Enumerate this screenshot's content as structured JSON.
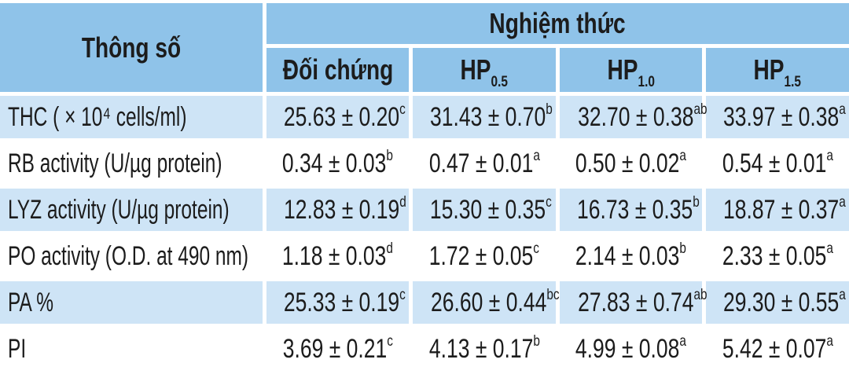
{
  "table": {
    "param_header": "Thông số",
    "group_header": "Nghiệm thức",
    "columns": [
      {
        "base": "Đối chứng",
        "sub": ""
      },
      {
        "base": "HP",
        "sub": "0.5"
      },
      {
        "base": "HP",
        "sub": "1.0"
      },
      {
        "base": "HP",
        "sub": "1.5"
      }
    ],
    "rows": [
      {
        "label": "THC ( × 10⁴ cells/ml)",
        "values": [
          {
            "v": "25.63 ± 0.20",
            "s": "c"
          },
          {
            "v": "31.43 ± 0.70",
            "s": "b"
          },
          {
            "v": "32.70 ± 0.38",
            "s": "ab"
          },
          {
            "v": "33.97 ± 0.38",
            "s": "a"
          }
        ]
      },
      {
        "label": "RB activity (U/µg protein)",
        "values": [
          {
            "v": "0.34 ± 0.03",
            "s": "b"
          },
          {
            "v": "0.47 ± 0.01",
            "s": "a"
          },
          {
            "v": "0.50 ± 0.02",
            "s": "a"
          },
          {
            "v": "0.54 ± 0.01",
            "s": "a"
          }
        ]
      },
      {
        "label": "LYZ activity (U/µg protein)",
        "values": [
          {
            "v": "12.83 ± 0.19",
            "s": "d"
          },
          {
            "v": "15.30 ± 0.35",
            "s": "c"
          },
          {
            "v": "16.73 ± 0.35",
            "s": "b"
          },
          {
            "v": "18.87 ± 0.37",
            "s": "a"
          }
        ]
      },
      {
        "label": "PO activity (O.D. at 490 nm)",
        "values": [
          {
            "v": "1.18 ± 0.03",
            "s": "d"
          },
          {
            "v": "1.72 ± 0.05",
            "s": "c"
          },
          {
            "v": "2.14 ± 0.03",
            "s": "b"
          },
          {
            "v": "2.33 ± 0.05",
            "s": "a"
          }
        ]
      },
      {
        "label": "PA %",
        "values": [
          {
            "v": "25.33 ± 0.19",
            "s": "c"
          },
          {
            "v": "26.60 ± 0.44",
            "s": "bc"
          },
          {
            "v": "27.83 ± 0.74",
            "s": "ab"
          },
          {
            "v": "29.30 ± 0.55",
            "s": "a"
          }
        ]
      },
      {
        "label": "PI",
        "values": [
          {
            "v": "3.69 ± 0.21",
            "s": "c"
          },
          {
            "v": "4.13 ± 0.17",
            "s": "b"
          },
          {
            "v": "4.99 ± 0.08",
            "s": "a"
          },
          {
            "v": "5.42 ± 0.07",
            "s": "a"
          }
        ]
      }
    ],
    "colors": {
      "header_blue": "#8fc3e9",
      "row_blue": "#cee4f6",
      "row_white": "#ffffff",
      "text": "#1c1c1c"
    }
  },
  "chart_data": {
    "type": "table",
    "title": "Nghiệm thức",
    "row_header": "Thông số",
    "columns": [
      "Đối chứng",
      "HP 0.5",
      "HP 1.0",
      "HP 1.5"
    ],
    "rows": [
      {
        "parameter": "THC ( × 10⁴ cells/ml)",
        "values": [
          "25.63 ± 0.20 c",
          "31.43 ± 0.70 b",
          "32.70 ± 0.38 ab",
          "33.97 ± 0.38 a"
        ]
      },
      {
        "parameter": "RB activity (U/µg protein)",
        "values": [
          "0.34 ± 0.03 b",
          "0.47 ± 0.01 a",
          "0.50 ± 0.02 a",
          "0.54 ± 0.01 a"
        ]
      },
      {
        "parameter": "LYZ activity (U/µg protein)",
        "values": [
          "12.83 ± 0.19 d",
          "15.30 ± 0.35 c",
          "16.73 ± 0.35 b",
          "18.87 ± 0.37 a"
        ]
      },
      {
        "parameter": "PO activity (O.D. at 490 nm)",
        "values": [
          "1.18 ± 0.03 d",
          "1.72 ± 0.05 c",
          "2.14 ± 0.03 b",
          "2.33 ± 0.05 a"
        ]
      },
      {
        "parameter": "PA %",
        "values": [
          "25.33 ± 0.19 c",
          "26.60 ± 0.44 bc",
          "27.83 ± 0.74 ab",
          "29.30 ± 0.55 a"
        ]
      },
      {
        "parameter": "PI",
        "values": [
          "3.69 ± 0.21 c",
          "4.13 ± 0.17 b",
          "4.99 ± 0.08 a",
          "5.42 ± 0.07 a"
        ]
      }
    ]
  }
}
